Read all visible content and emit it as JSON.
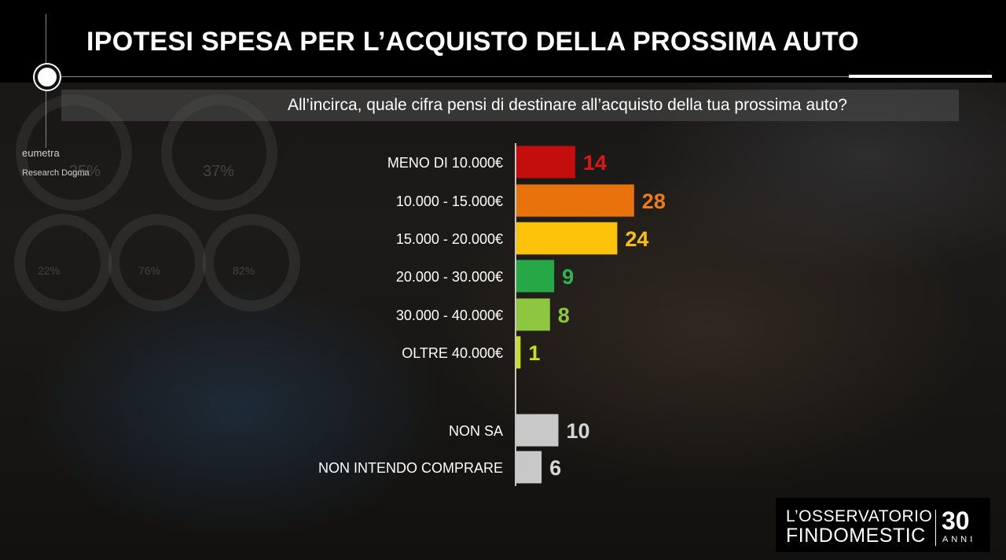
{
  "header": {
    "title": "IPOTESI SPESA PER L’ACQUISTO DELLA PROSSIMA AUTO",
    "question": "All’incirca, quale cifra pensi di destinare all’acquisto della tua prossima auto?"
  },
  "colors": {
    "bar_red": "#c40d0d",
    "bar_orange": "#e8720c",
    "bar_yellow": "#fcc20a",
    "bar_green": "#27a847",
    "bar_lightgreen": "#8dc63f",
    "bar_lime": "#c7e21a",
    "bar_gray": "#c8c8c8"
  },
  "chart_data": {
    "type": "bar",
    "orientation": "horizontal",
    "title": "IPOTESI SPESA PER L’ACQUISTO DELLA PROSSIMA AUTO",
    "subtitle": "All’incirca, quale cifra pensi di destinare all’acquisto della tua prossima auto?",
    "categories": [
      "MENO DI 10.000€",
      "10.000 - 15.000€",
      "15.000 - 20.000€",
      "20.000 - 30.000€",
      "30.000 - 40.000€",
      "OLTRE 40.000€",
      "NON SA",
      "NON INTENDO COMPRARE"
    ],
    "values": [
      14,
      28,
      24,
      9,
      8,
      1,
      10,
      6
    ],
    "bar_colors": [
      "#c40d0d",
      "#e8720c",
      "#fcc20a",
      "#27a847",
      "#8dc63f",
      "#c7e21a",
      "#c8c8c8",
      "#c8c8c8"
    ],
    "label_colors": [
      "#e01515",
      "#f07d12",
      "#fcc20a",
      "#2fb552",
      "#8dc63f",
      "#c7e21a",
      "#d6d6d6",
      "#d6d6d6"
    ],
    "grid": false,
    "data_labels": true
  },
  "footer": {
    "brand_line1": "L’OSSERVATORIO",
    "brand_line2": "FINDOMESTIC",
    "anniversary_number": "30",
    "anniversary_word": "ANNI"
  },
  "background": {
    "logo_text_1": "eumetra",
    "logo_text_2": "Research Dogma",
    "deco_percent_1": "35%",
    "deco_percent_2": "37%",
    "deco_percent_3": "22%",
    "deco_percent_4": "76%",
    "deco_percent_5": "82%"
  }
}
